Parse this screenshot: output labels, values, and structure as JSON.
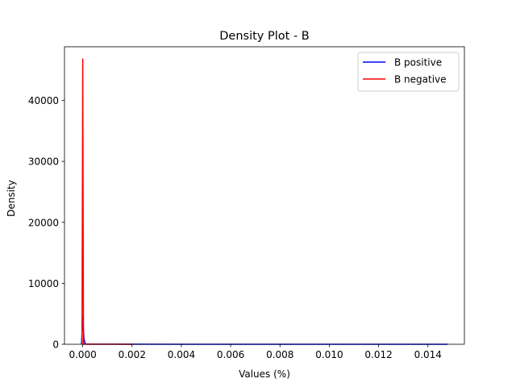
{
  "chart_data": {
    "type": "line",
    "title": "Density Plot - B",
    "xlabel": "Values (%)",
    "ylabel": "Density",
    "xlim": [
      -0.00074,
      0.01548
    ],
    "ylim": [
      0,
      48800
    ],
    "x_ticks": [
      0.0,
      0.002,
      0.004,
      0.006,
      0.008,
      0.01,
      0.012,
      0.014
    ],
    "x_tick_labels": [
      "0.000",
      "0.002",
      "0.004",
      "0.006",
      "0.008",
      "0.010",
      "0.012",
      "0.014"
    ],
    "y_ticks": [
      0,
      10000,
      20000,
      30000,
      40000
    ],
    "y_tick_labels": [
      "0",
      "10000",
      "20000",
      "30000",
      "40000"
    ],
    "grid": false,
    "legend_position": "top-right",
    "series": [
      {
        "name": "B positive",
        "color": "#0000ff",
        "x": [
          -5e-05,
          0.0,
          5e-05,
          0.0001,
          0.0002,
          0.001,
          0.004,
          0.008,
          0.012,
          0.0148
        ],
        "y": [
          0,
          4500,
          900,
          80,
          20,
          10,
          5,
          3,
          2,
          0
        ]
      },
      {
        "name": "B negative",
        "color": "#ff0000",
        "x": [
          -3e-05,
          -1e-05,
          0.0,
          1e-05,
          3e-05,
          0.0001,
          0.0005,
          0.001,
          0.002
        ],
        "y": [
          0,
          30000,
          46800,
          30000,
          0,
          40,
          20,
          10,
          0
        ]
      }
    ]
  }
}
